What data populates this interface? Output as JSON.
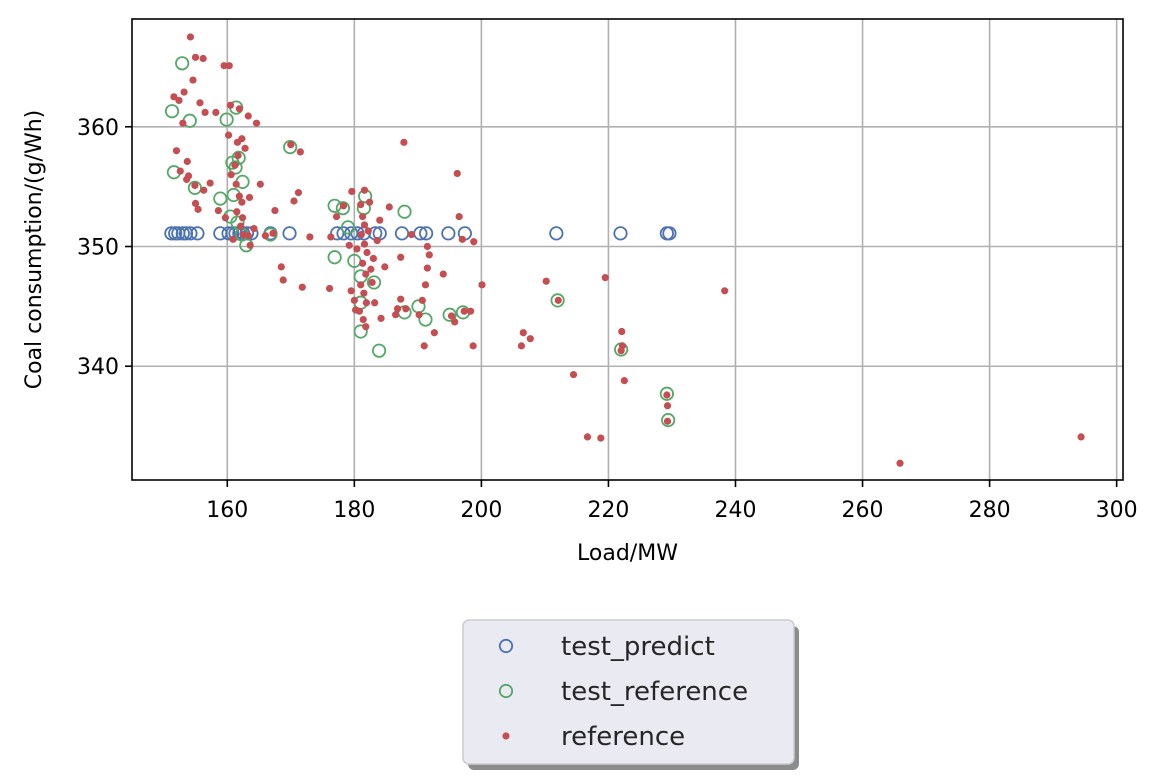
{
  "chart_data": {
    "type": "scatter",
    "title": "",
    "xlabel": "Load/MW",
    "ylabel": "Coal consumption/(g/Wh)",
    "xlim": [
      145,
      301
    ],
    "ylim": [
      330.5,
      369
    ],
    "xticks": [
      160,
      180,
      200,
      220,
      240,
      260,
      280,
      300
    ],
    "yticks": [
      340,
      350,
      360
    ],
    "grid": true,
    "legend_position": "below plot, centered, with shadow",
    "series": [
      {
        "name": "test_predict",
        "marker": "hollow-circle",
        "color": "#4c72b0",
        "points": [
          [
            151.2,
            351.1
          ],
          [
            151.8,
            351.1
          ],
          [
            152.3,
            351.1
          ],
          [
            153.0,
            351.1
          ],
          [
            153.5,
            351.1
          ],
          [
            154.2,
            351.1
          ],
          [
            155.3,
            351.1
          ],
          [
            158.9,
            351.1
          ],
          [
            160.2,
            351.1
          ],
          [
            160.8,
            351.1
          ],
          [
            161.3,
            351.1
          ],
          [
            161.9,
            351.1
          ],
          [
            162.5,
            351.1
          ],
          [
            163.1,
            351.1
          ],
          [
            163.8,
            351.1
          ],
          [
            166.8,
            351.1
          ],
          [
            169.8,
            351.1
          ],
          [
            177.3,
            351.1
          ],
          [
            178.3,
            351.1
          ],
          [
            179.5,
            351.1
          ],
          [
            180.5,
            351.1
          ],
          [
            181.5,
            351.1
          ],
          [
            183.3,
            351.1
          ],
          [
            184.0,
            351.1
          ],
          [
            187.5,
            351.1
          ],
          [
            190.4,
            351.1
          ],
          [
            191.3,
            351.1
          ],
          [
            194.8,
            351.1
          ],
          [
            197.4,
            351.1
          ],
          [
            211.8,
            351.1
          ],
          [
            221.9,
            351.1
          ],
          [
            229.2,
            351.1
          ],
          [
            229.6,
            351.1
          ]
        ]
      },
      {
        "name": "test_reference",
        "marker": "hollow-circle",
        "color": "#55a868",
        "points": [
          [
            152.9,
            365.3
          ],
          [
            151.3,
            361.3
          ],
          [
            154.1,
            360.5
          ],
          [
            161.4,
            361.6
          ],
          [
            159.9,
            360.6
          ],
          [
            151.6,
            356.2
          ],
          [
            154.9,
            354.9
          ],
          [
            158.9,
            354.0
          ],
          [
            160.8,
            357.0
          ],
          [
            161.3,
            356.6
          ],
          [
            161.8,
            357.4
          ],
          [
            162.4,
            355.4
          ],
          [
            161.0,
            354.3
          ],
          [
            160.5,
            352.5
          ],
          [
            161.6,
            352.0
          ],
          [
            162.3,
            351.0
          ],
          [
            163.0,
            350.1
          ],
          [
            166.8,
            351.0
          ],
          [
            169.9,
            358.3
          ],
          [
            176.9,
            353.4
          ],
          [
            176.9,
            349.1
          ],
          [
            178.2,
            353.2
          ],
          [
            179.0,
            351.6
          ],
          [
            180.0,
            348.8
          ],
          [
            181.0,
            347.5
          ],
          [
            181.0,
            345.3
          ],
          [
            181.0,
            342.9
          ],
          [
            181.5,
            353.2
          ],
          [
            181.7,
            354.2
          ],
          [
            183.1,
            347.0
          ],
          [
            183.9,
            341.3
          ],
          [
            187.9,
            344.5
          ],
          [
            187.9,
            352.9
          ],
          [
            190.1,
            345.0
          ],
          [
            191.2,
            343.9
          ],
          [
            195.0,
            344.3
          ],
          [
            197.1,
            344.5
          ],
          [
            212.0,
            345.5
          ],
          [
            222.0,
            341.4
          ],
          [
            229.2,
            337.7
          ],
          [
            229.4,
            335.5
          ]
        ]
      },
      {
        "name": "reference",
        "marker": "dot",
        "color": "#c44e52",
        "points": [
          [
            154.2,
            367.5
          ],
          [
            155.0,
            365.8
          ],
          [
            156.2,
            365.7
          ],
          [
            159.5,
            365.1
          ],
          [
            160.3,
            365.1
          ],
          [
            154.6,
            363.9
          ],
          [
            151.6,
            362.5
          ],
          [
            152.4,
            362.2
          ],
          [
            153.2,
            362.9
          ],
          [
            155.7,
            362.0
          ],
          [
            158.2,
            361.2
          ],
          [
            160.5,
            361.8
          ],
          [
            161.9,
            361.5
          ],
          [
            163.3,
            360.9
          ],
          [
            164.6,
            360.3
          ],
          [
            153.0,
            360.3
          ],
          [
            156.5,
            361.2
          ],
          [
            160.2,
            359.3
          ],
          [
            161.6,
            358.7
          ],
          [
            162.3,
            359.0
          ],
          [
            162.8,
            358.2
          ],
          [
            171.5,
            357.9
          ],
          [
            152.0,
            358.0
          ],
          [
            153.7,
            357.1
          ],
          [
            152.6,
            356.3
          ],
          [
            153.6,
            355.6
          ],
          [
            154.9,
            355.1
          ],
          [
            157.3,
            355.3
          ],
          [
            160.6,
            356.0
          ],
          [
            161.4,
            355.2
          ],
          [
            161.9,
            354.2
          ],
          [
            162.3,
            353.7
          ],
          [
            163.5,
            354.1
          ],
          [
            165.2,
            355.2
          ],
          [
            171.2,
            354.5
          ],
          [
            155.0,
            353.6
          ],
          [
            155.4,
            353.1
          ],
          [
            158.6,
            353.0
          ],
          [
            159.7,
            352.4
          ],
          [
            161.5,
            352.9
          ],
          [
            162.4,
            352.4
          ],
          [
            162.1,
            351.7
          ],
          [
            162.5,
            351.0
          ],
          [
            163.3,
            350.9
          ],
          [
            164.2,
            351.5
          ],
          [
            166.0,
            350.9
          ],
          [
            167.2,
            351.1
          ],
          [
            167.5,
            353.0
          ],
          [
            170.5,
            353.8
          ],
          [
            173.0,
            350.8
          ],
          [
            176.3,
            350.8
          ],
          [
            168.5,
            348.3
          ],
          [
            168.8,
            347.2
          ],
          [
            171.8,
            346.6
          ],
          [
            176.1,
            346.5
          ],
          [
            179.6,
            354.6
          ],
          [
            181.6,
            354.7
          ],
          [
            181.0,
            353.5
          ],
          [
            181.3,
            352.5
          ],
          [
            181.6,
            351.8
          ],
          [
            181.1,
            351.0
          ],
          [
            181.6,
            350.2
          ],
          [
            182.0,
            349.5
          ],
          [
            181.3,
            348.6
          ],
          [
            181.8,
            347.7
          ],
          [
            181.0,
            346.8
          ],
          [
            181.5,
            346.1
          ],
          [
            181.9,
            345.3
          ],
          [
            180.8,
            344.6
          ],
          [
            181.4,
            343.9
          ],
          [
            181.8,
            343.3
          ],
          [
            179.5,
            346.3
          ],
          [
            180.0,
            345.5
          ],
          [
            180.2,
            344.7
          ],
          [
            182.6,
            348.1
          ],
          [
            182.8,
            347.0
          ],
          [
            183.2,
            345.3
          ],
          [
            183.6,
            350.5
          ],
          [
            184.8,
            348.3
          ],
          [
            184.0,
            352.2
          ],
          [
            185.5,
            353.3
          ],
          [
            186.8,
            344.8
          ],
          [
            187.3,
            345.6
          ],
          [
            186.5,
            344.3
          ],
          [
            187.8,
            358.7
          ],
          [
            187.3,
            349.1
          ],
          [
            189.0,
            351.0
          ],
          [
            190.7,
            345.5
          ],
          [
            190.2,
            344.3
          ],
          [
            191.0,
            341.7
          ],
          [
            191.5,
            350.0
          ],
          [
            191.8,
            349.3
          ],
          [
            191.5,
            348.2
          ],
          [
            191.2,
            346.8
          ],
          [
            192.6,
            342.8
          ],
          [
            194.0,
            347.7
          ],
          [
            195.8,
            343.7
          ],
          [
            196.2,
            356.1
          ],
          [
            196.5,
            352.5
          ],
          [
            197.0,
            350.6
          ],
          [
            198.3,
            344.6
          ],
          [
            198.8,
            350.4
          ],
          [
            198.7,
            341.7
          ],
          [
            200.1,
            346.8
          ],
          [
            206.3,
            341.7
          ],
          [
            206.6,
            342.8
          ],
          [
            207.7,
            342.3
          ],
          [
            210.2,
            347.1
          ],
          [
            214.5,
            339.3
          ],
          [
            216.7,
            334.1
          ],
          [
            218.8,
            334.0
          ],
          [
            219.5,
            347.4
          ],
          [
            222.1,
            342.9
          ],
          [
            222.2,
            341.7
          ],
          [
            222.5,
            338.8
          ],
          [
            229.3,
            336.7
          ],
          [
            238.3,
            346.3
          ],
          [
            265.9,
            331.9
          ],
          [
            294.4,
            334.1
          ],
          [
            153.9,
            355.9
          ],
          [
            156.3,
            354.7
          ],
          [
            161.2,
            356.8
          ],
          [
            161.7,
            357.6
          ],
          [
            160.9,
            350.6
          ],
          [
            163.6,
            350.1
          ],
          [
            170.0,
            358.5
          ],
          [
            177.2,
            352.5
          ],
          [
            178.3,
            353.4
          ],
          [
            179.2,
            350.1
          ],
          [
            180.4,
            349.8
          ],
          [
            182.2,
            351.3
          ],
          [
            182.4,
            353.7
          ],
          [
            183.0,
            349.0
          ],
          [
            184.2,
            344.0
          ],
          [
            188.1,
            344.8
          ],
          [
            195.3,
            344.2
          ],
          [
            197.3,
            344.6
          ],
          [
            212.1,
            345.5
          ],
          [
            222.0,
            341.3
          ],
          [
            229.2,
            337.6
          ],
          [
            229.3,
            335.4
          ]
        ]
      }
    ]
  }
}
